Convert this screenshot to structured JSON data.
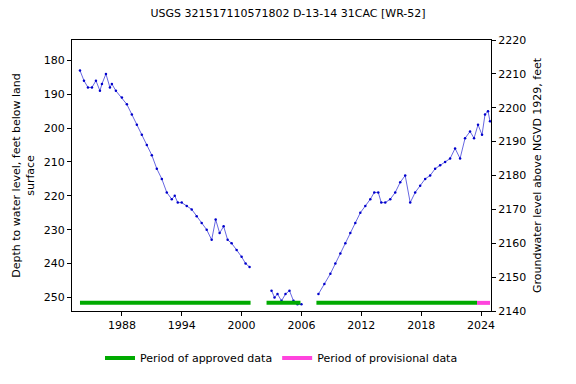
{
  "chart_data": {
    "type": "scatter",
    "title": "USGS 321517110571802 D-13-14 31CAC [WR-52]",
    "y_label_lines": [
      "Depth to water level, feet below land",
      "surface"
    ],
    "y2_label": "Groundwater level above NGVD 1929, feet",
    "x": [
      1983.8,
      1984.2,
      1984.6,
      1985.0,
      1985.4,
      1985.8,
      1986.0,
      1986.4,
      1986.8,
      1987.0,
      1987.4,
      1988.0,
      1988.5,
      1989.0,
      1989.5,
      1990.0,
      1990.5,
      1991.0,
      1991.5,
      1992.0,
      1992.5,
      1993.0,
      1993.3,
      1993.6,
      1994.0,
      1994.5,
      1995.0,
      1995.5,
      1996.0,
      1996.5,
      1997.0,
      1997.4,
      1997.8,
      1998.2,
      1998.6,
      1999.0,
      1999.5,
      2000.0,
      2000.4,
      2000.8,
      2001.8,
      2003.0,
      2003.3,
      2003.6,
      2004.0,
      2004.4,
      2004.8,
      2005.2,
      2005.6,
      2006.0,
      2006.8,
      2007.7,
      2008.3,
      2008.9,
      2009.4,
      2009.9,
      2010.4,
      2010.9,
      2011.4,
      2011.9,
      2012.4,
      2012.9,
      2013.3,
      2013.7,
      2014.0,
      2014.4,
      2014.9,
      2015.4,
      2015.9,
      2016.4,
      2016.9,
      2017.4,
      2017.9,
      2018.4,
      2018.9,
      2019.4,
      2019.9,
      2020.4,
      2020.9,
      2021.4,
      2021.9,
      2022.4,
      2022.9,
      2023.3,
      2023.7,
      2024.1,
      2024.4,
      2024.7,
      2024.9
    ],
    "series": [
      {
        "name": "Depth to water level",
        "color": "#0000cc",
        "marker": "circle",
        "line_style": "solid",
        "values": [
          183,
          186,
          188,
          188,
          186,
          189,
          187,
          184,
          188,
          187,
          189,
          191,
          193,
          196,
          199,
          202,
          205,
          208,
          212,
          215,
          219,
          221,
          220,
          222,
          222,
          223,
          224,
          226,
          228,
          230,
          233,
          227,
          231,
          229,
          233,
          234,
          236,
          238,
          240,
          241,
          null,
          248,
          250,
          249,
          251,
          249,
          248,
          251,
          252,
          252,
          null,
          249,
          246,
          243,
          240,
          237,
          234,
          231,
          228,
          225,
          223,
          221,
          219,
          219,
          222,
          222,
          221,
          219,
          216,
          214,
          222,
          219,
          217,
          215,
          214,
          212,
          211,
          210,
          209,
          206,
          209,
          203,
          201,
          203,
          199,
          202,
          196,
          195,
          198
        ]
      }
    ],
    "periods": [
      {
        "name": "Period of approved data",
        "color": "#00aa00",
        "ranges": [
          [
            1983.8,
            2000.9
          ],
          [
            2002.5,
            2005.9
          ],
          [
            2007.5,
            2023.6
          ]
        ]
      },
      {
        "name": "Period of provisional data",
        "color": "#ff44dd",
        "ranges": [
          [
            2023.6,
            2024.9
          ]
        ]
      }
    ],
    "xlim": [
      1983.0,
      2025.0
    ],
    "xticks": [
      1988,
      1994,
      2000,
      2006,
      2012,
      2018,
      2024
    ],
    "ylim": [
      254,
      174
    ],
    "yticks": [
      180,
      190,
      200,
      210,
      220,
      230,
      240,
      250
    ],
    "y2lim": [
      2140,
      2220
    ],
    "y2ticks": [
      2140,
      2150,
      2160,
      2170,
      2180,
      2190,
      2200,
      2210,
      2220
    ],
    "grid": false,
    "legend": "bottom"
  }
}
